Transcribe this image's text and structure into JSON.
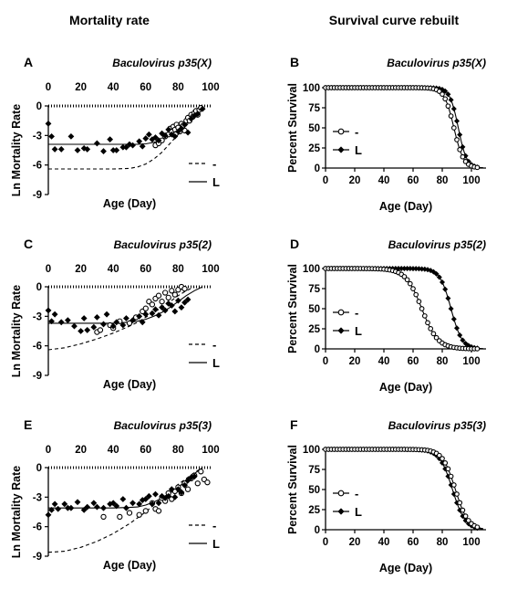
{
  "column_titles": [
    "Mortality rate",
    "Survival curve rebuilt"
  ],
  "chart_data": [
    {
      "panel": "A",
      "type": "scatter",
      "title": "Baculovirus p35(X)",
      "xlabel": "Age (Day)",
      "ylabel": "Ln Mortality Rate",
      "xlim": [
        0,
        100
      ],
      "ylim": [
        -9,
        0
      ],
      "xticks": [
        0,
        20,
        40,
        60,
        80,
        100
      ],
      "yticks": [
        0,
        -3,
        -6,
        -9
      ],
      "x_axis_position": "top",
      "legend": [
        {
          "label": "-",
          "style": "dashed"
        },
        {
          "label": "L",
          "style": "solid"
        }
      ],
      "fits": [
        {
          "name": "-",
          "style": "dashed",
          "x": [
            0,
            10,
            20,
            30,
            40,
            50,
            55,
            60,
            65,
            70,
            75,
            80,
            85,
            90,
            95
          ],
          "y": [
            -6.4,
            -6.4,
            -6.4,
            -6.4,
            -6.4,
            -6.35,
            -6.2,
            -5.9,
            -5.4,
            -4.7,
            -3.8,
            -2.9,
            -2.0,
            -1.1,
            -0.3
          ]
        },
        {
          "name": "L",
          "style": "solid",
          "x": [
            0,
            10,
            20,
            30,
            40,
            50,
            55,
            60,
            65,
            70,
            75,
            80,
            85,
            90,
            95
          ],
          "y": [
            -3.9,
            -3.9,
            -3.9,
            -3.9,
            -3.9,
            -3.9,
            -3.9,
            -3.85,
            -3.7,
            -3.4,
            -3.0,
            -2.4,
            -1.7,
            -0.9,
            -0.2
          ]
        }
      ],
      "series": [
        {
          "name": "-",
          "marker": "open-circle",
          "x": [
            66,
            68,
            70,
            72,
            74,
            75,
            76,
            77,
            78,
            79,
            80,
            81,
            82,
            83,
            84,
            85,
            86,
            87,
            88,
            89,
            90,
            91,
            92,
            93,
            94
          ],
          "y": [
            -4.0,
            -3.8,
            -3.5,
            -3.1,
            -2.9,
            -2.3,
            -2.6,
            -2.1,
            -2.4,
            -1.9,
            -2.2,
            -2.6,
            -1.8,
            -2.0,
            -2.5,
            -1.5,
            -1.2,
            -1.5,
            -0.9,
            -1.1,
            -0.7,
            -0.5,
            -0.9,
            -0.4,
            -0.2
          ]
        },
        {
          "name": "L",
          "marker": "filled-diamond",
          "x": [
            0,
            2,
            4,
            8,
            14,
            18,
            22,
            24,
            30,
            34,
            38,
            40,
            42,
            46,
            48,
            50,
            52,
            56,
            58,
            60,
            62,
            64,
            66,
            68,
            70,
            72,
            74,
            76,
            78,
            80,
            82,
            84,
            86,
            88,
            90,
            92,
            95
          ],
          "y": [
            -1.8,
            -3.1,
            -4.4,
            -4.4,
            -3.1,
            -4.5,
            -4.3,
            -4.4,
            -3.8,
            -4.6,
            -3.4,
            -4.5,
            -4.5,
            -4.2,
            -4.2,
            -3.9,
            -4.0,
            -3.6,
            -4.1,
            -3.3,
            -2.9,
            -3.4,
            -3.2,
            -3.5,
            -2.8,
            -3.0,
            -2.4,
            -2.9,
            -3.1,
            -2.6,
            -2.3,
            -1.9,
            -2.7,
            -1.3,
            -1.0,
            -0.8,
            -0.3
          ]
        }
      ]
    },
    {
      "panel": "B",
      "type": "line",
      "title": "Baculovirus p35(X)",
      "xlabel": "Age (Day)",
      "ylabel": "Percent Survival",
      "xlim": [
        0,
        110
      ],
      "ylim": [
        0,
        100
      ],
      "xticks": [
        0,
        20,
        40,
        60,
        80,
        100
      ],
      "yticks": [
        0,
        25,
        50,
        75,
        100
      ],
      "legend": [
        {
          "label": "-",
          "marker": "open-circle"
        },
        {
          "label": "L",
          "marker": "filled-diamond"
        }
      ],
      "series": [
        {
          "name": "-",
          "marker": "open-circle",
          "midpoint": 88,
          "width": 3.3
        },
        {
          "name": "L",
          "marker": "filled-diamond",
          "midpoint": 91,
          "width": 2.9
        }
      ]
    },
    {
      "panel": "C",
      "type": "scatter",
      "title": "Baculovirus p35(2)",
      "xlabel": "Age (Day)",
      "ylabel": "Ln Mortality Rate",
      "xlim": [
        0,
        100
      ],
      "ylim": [
        -9,
        0
      ],
      "xticks": [
        0,
        20,
        40,
        60,
        80,
        100
      ],
      "yticks": [
        0,
        -3,
        -6,
        -9
      ],
      "x_axis_position": "top",
      "legend": [
        {
          "label": "-",
          "style": "dashed"
        },
        {
          "label": "L",
          "style": "solid"
        }
      ],
      "fits": [
        {
          "name": "-",
          "style": "dashed",
          "x": [
            0,
            10,
            20,
            30,
            40,
            50,
            55,
            60,
            65,
            70,
            75,
            80,
            85,
            90
          ],
          "y": [
            -6.4,
            -6.2,
            -5.8,
            -5.3,
            -4.7,
            -4.0,
            -3.6,
            -3.1,
            -2.6,
            -2.1,
            -1.5,
            -0.9,
            -0.4,
            0.0
          ]
        },
        {
          "name": "L",
          "style": "solid",
          "x": [
            0,
            10,
            20,
            30,
            40,
            50,
            55,
            60,
            65,
            70,
            75,
            80,
            85,
            90,
            95
          ],
          "y": [
            -3.7,
            -3.7,
            -3.7,
            -3.7,
            -3.7,
            -3.6,
            -3.5,
            -3.3,
            -3.0,
            -2.6,
            -2.1,
            -1.5,
            -0.9,
            -0.4,
            0.0
          ]
        }
      ],
      "series": [
        {
          "name": "-",
          "marker": "open-circle",
          "x": [
            30,
            32,
            38,
            40,
            44,
            50,
            54,
            58,
            60,
            62,
            64,
            66,
            68,
            70,
            72,
            74,
            76,
            78,
            80,
            82,
            84
          ],
          "y": [
            -4.6,
            -4.4,
            -3.9,
            -4.2,
            -3.5,
            -3.7,
            -3.1,
            -2.5,
            -2.2,
            -1.5,
            -1.8,
            -1.2,
            -0.9,
            -1.5,
            -0.6,
            -1.1,
            -0.4,
            -0.8,
            -0.3,
            0.0,
            -0.2
          ]
        },
        {
          "name": "L",
          "marker": "filled-diamond",
          "x": [
            0,
            2,
            4,
            8,
            12,
            16,
            20,
            22,
            24,
            28,
            30,
            34,
            36,
            40,
            42,
            46,
            48,
            52,
            56,
            58,
            60,
            64,
            66,
            68,
            70,
            72,
            74,
            76,
            78,
            80,
            82,
            84,
            86
          ],
          "y": [
            -2.4,
            -3.5,
            -2.8,
            -3.6,
            -3.4,
            -4.0,
            -4.5,
            -3.2,
            -4.4,
            -4.1,
            -3.1,
            -3.8,
            -2.8,
            -4.0,
            -3.6,
            -3.9,
            -3.2,
            -3.4,
            -3.0,
            -3.6,
            -2.8,
            -2.7,
            -2.3,
            -2.9,
            -2.1,
            -2.4,
            -1.7,
            -1.9,
            -2.5,
            -1.4,
            -2.1,
            -1.6,
            -1.3
          ]
        }
      ]
    },
    {
      "panel": "D",
      "type": "line",
      "title": "Baculovirus p35(2)",
      "xlabel": "Age (Day)",
      "ylabel": "Percent Survival",
      "xlim": [
        0,
        110
      ],
      "ylim": [
        0,
        100
      ],
      "xticks": [
        0,
        20,
        40,
        60,
        80,
        100
      ],
      "yticks": [
        0,
        25,
        50,
        75,
        100
      ],
      "legend": [
        {
          "label": "-",
          "marker": "open-circle"
        },
        {
          "label": "L",
          "marker": "filled-diamond"
        }
      ],
      "series": [
        {
          "name": "-",
          "marker": "open-circle",
          "midpoint": 66,
          "width": 5.5
        },
        {
          "name": "L",
          "marker": "filled-diamond",
          "midpoint": 86,
          "width": 3.8
        }
      ]
    },
    {
      "panel": "E",
      "type": "scatter",
      "title": "Baculovirus p35(3)",
      "xlabel": "Age (Day)",
      "ylabel": "Ln Mortality Rate",
      "xlim": [
        0,
        100
      ],
      "ylim": [
        -9,
        0
      ],
      "xticks": [
        0,
        20,
        40,
        60,
        80,
        100
      ],
      "yticks": [
        0,
        -3,
        -6,
        -9
      ],
      "x_axis_position": "top",
      "legend": [
        {
          "label": "-",
          "style": "dashed"
        },
        {
          "label": "L",
          "style": "solid"
        }
      ],
      "fits": [
        {
          "name": "-",
          "style": "dashed",
          "x": [
            0,
            10,
            20,
            30,
            40,
            50,
            55,
            60,
            65,
            70,
            75,
            80,
            85,
            90,
            95
          ],
          "y": [
            -8.6,
            -8.5,
            -8.1,
            -7.5,
            -6.7,
            -5.7,
            -5.1,
            -4.5,
            -3.8,
            -3.1,
            -2.4,
            -1.7,
            -1.1,
            -0.5,
            0.0
          ]
        },
        {
          "name": "L",
          "style": "solid",
          "x": [
            0,
            10,
            20,
            30,
            40,
            50,
            55,
            60,
            65,
            70,
            75,
            80,
            85,
            90,
            95
          ],
          "y": [
            -4.1,
            -4.1,
            -4.1,
            -4.1,
            -4.1,
            -4.05,
            -4.0,
            -3.8,
            -3.5,
            -3.1,
            -2.6,
            -2.0,
            -1.3,
            -0.6,
            0.0
          ]
        }
      ],
      "series": [
        {
          "name": "-",
          "marker": "open-circle",
          "x": [
            34,
            44,
            50,
            56,
            60,
            64,
            66,
            68,
            70,
            72,
            74,
            76,
            78,
            80,
            82,
            84,
            86,
            88,
            90,
            92,
            94,
            96,
            98
          ],
          "y": [
            -5.0,
            -5.0,
            -4.6,
            -4.8,
            -4.4,
            -3.6,
            -4.2,
            -4.4,
            -3.1,
            -3.4,
            -2.6,
            -3.2,
            -2.4,
            -2.0,
            -2.6,
            -1.6,
            -2.2,
            -1.1,
            -0.8,
            -1.6,
            -0.4,
            -1.2,
            -1.5
          ]
        },
        {
          "name": "L",
          "marker": "filled-diamond",
          "x": [
            0,
            2,
            4,
            6,
            10,
            12,
            14,
            18,
            22,
            24,
            28,
            30,
            34,
            38,
            40,
            42,
            46,
            48,
            52,
            56,
            58,
            60,
            62,
            64,
            66,
            68,
            70,
            72,
            74,
            76,
            78,
            80,
            82,
            84,
            86,
            88,
            90
          ],
          "y": [
            -4.8,
            -4.3,
            -3.7,
            -4.2,
            -3.7,
            -4.1,
            -4.1,
            -3.5,
            -4.3,
            -4.0,
            -3.6,
            -4.0,
            -4.1,
            -3.7,
            -3.6,
            -3.9,
            -3.2,
            -4.1,
            -3.6,
            -3.7,
            -3.3,
            -3.2,
            -2.9,
            -3.7,
            -2.7,
            -3.6,
            -2.9,
            -3.1,
            -2.9,
            -2.2,
            -3.0,
            -2.2,
            -2.5,
            -1.8,
            -1.3,
            -1.0,
            -0.9
          ]
        }
      ]
    },
    {
      "panel": "F",
      "type": "line",
      "title": "Baculovirus p35(3)",
      "xlabel": "Age (Day)",
      "ylabel": "Percent Survival",
      "xlim": [
        0,
        110
      ],
      "ylim": [
        0,
        100
      ],
      "xticks": [
        0,
        20,
        40,
        60,
        80,
        100
      ],
      "yticks": [
        0,
        25,
        50,
        75,
        100
      ],
      "legend": [
        {
          "label": "-",
          "marker": "open-circle"
        },
        {
          "label": "L",
          "marker": "filled-diamond"
        }
      ],
      "series": [
        {
          "name": "-",
          "marker": "open-circle",
          "midpoint": 89,
          "width": 4.4
        },
        {
          "name": "L",
          "marker": "filled-diamond",
          "midpoint": 87,
          "width": 4.4
        }
      ]
    }
  ]
}
